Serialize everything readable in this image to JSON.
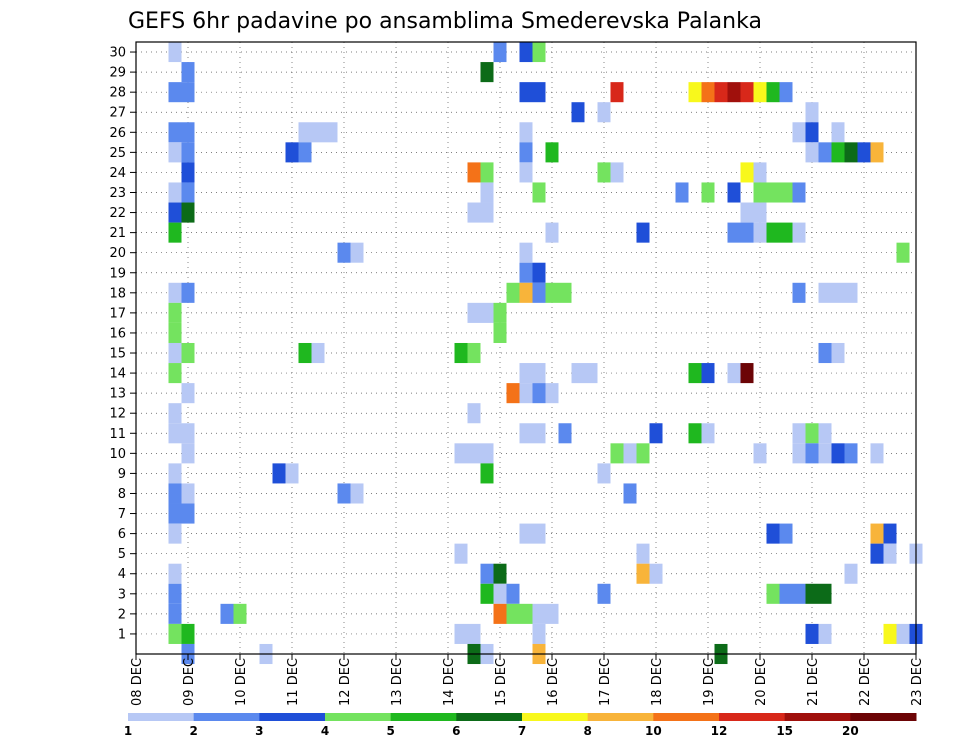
{
  "chart_data": {
    "type": "heatmap",
    "title": "GEFS 6hr padavine po ansamblima Smederevska Palanka",
    "xlabel": "",
    "ylabel": "",
    "x_tick_labels": [
      "08 DEC",
      "09 DEC",
      "10 DEC",
      "11 DEC",
      "12 DEC",
      "13 DEC",
      "14 DEC",
      "15 DEC",
      "16 DEC",
      "17 DEC",
      "18 DEC",
      "19 DEC",
      "20 DEC",
      "21 DEC",
      "22 DEC",
      "23 DEC"
    ],
    "x_unit": "6-hour steps from 08 DEC 00 UTC (4 per day)",
    "x_range": [
      0,
      60
    ],
    "y_tick_labels": [
      "1",
      "2",
      "3",
      "4",
      "5",
      "6",
      "7",
      "8",
      "9",
      "10",
      "11",
      "12",
      "13",
      "14",
      "15",
      "16",
      "17",
      "18",
      "19",
      "20",
      "21",
      "22",
      "23",
      "24",
      "25",
      "26",
      "27",
      "28",
      "29",
      "30"
    ],
    "y_range": [
      0,
      30
    ],
    "grid": true,
    "legend": {
      "placement": "bottom",
      "thresholds": [
        "1",
        "2",
        "3",
        "4",
        "5",
        "6",
        "7",
        "8",
        "10",
        "12",
        "15",
        "20"
      ],
      "colors": [
        "#b7c8f5",
        "#5b89ee",
        "#1f4fd8",
        "#74e35f",
        "#1fb81f",
        "#0c6b18",
        "#f8f81c",
        "#f8b43a",
        "#f47218",
        "#d8281a",
        "#a0100c",
        "#6c0406"
      ]
    },
    "cells_format": "[member, step, colour_class]",
    "cells": [
      [
        30,
        3,
        0
      ],
      [
        30,
        28,
        1
      ],
      [
        30,
        30,
        2
      ],
      [
        30,
        31,
        3
      ],
      [
        29,
        4,
        1
      ],
      [
        29,
        27,
        5
      ],
      [
        28,
        3,
        1
      ],
      [
        28,
        4,
        1
      ],
      [
        28,
        30,
        2
      ],
      [
        28,
        31,
        2
      ],
      [
        28,
        37,
        9
      ],
      [
        28,
        43,
        6
      ],
      [
        28,
        44,
        8
      ],
      [
        28,
        45,
        9
      ],
      [
        28,
        46,
        10
      ],
      [
        28,
        47,
        9
      ],
      [
        28,
        48,
        6
      ],
      [
        28,
        49,
        4
      ],
      [
        28,
        50,
        1
      ],
      [
        27,
        34,
        2
      ],
      [
        27,
        36,
        0
      ],
      [
        27,
        52,
        0
      ],
      [
        26,
        3,
        1
      ],
      [
        26,
        4,
        1
      ],
      [
        26,
        13,
        0
      ],
      [
        26,
        14,
        0
      ],
      [
        26,
        15,
        0
      ],
      [
        26,
        30,
        0
      ],
      [
        26,
        51,
        0
      ],
      [
        26,
        52,
        2
      ],
      [
        26,
        54,
        0
      ],
      [
        25,
        3,
        0
      ],
      [
        25,
        4,
        1
      ],
      [
        25,
        12,
        2
      ],
      [
        25,
        13,
        1
      ],
      [
        25,
        30,
        1
      ],
      [
        25,
        32,
        4
      ],
      [
        25,
        52,
        0
      ],
      [
        25,
        53,
        1
      ],
      [
        25,
        54,
        4
      ],
      [
        25,
        55,
        5
      ],
      [
        25,
        56,
        2
      ],
      [
        25,
        57,
        7
      ],
      [
        24,
        4,
        2
      ],
      [
        24,
        26,
        8
      ],
      [
        24,
        27,
        3
      ],
      [
        24,
        30,
        0
      ],
      [
        24,
        36,
        3
      ],
      [
        24,
        37,
        0
      ],
      [
        24,
        47,
        6
      ],
      [
        24,
        48,
        0
      ],
      [
        23,
        3,
        0
      ],
      [
        23,
        4,
        1
      ],
      [
        23,
        27,
        0
      ],
      [
        23,
        31,
        3
      ],
      [
        23,
        42,
        1
      ],
      [
        23,
        44,
        3
      ],
      [
        23,
        46,
        2
      ],
      [
        23,
        48,
        3
      ],
      [
        23,
        49,
        3
      ],
      [
        23,
        50,
        3
      ],
      [
        23,
        51,
        1
      ],
      [
        22,
        3,
        2
      ],
      [
        22,
        4,
        5
      ],
      [
        22,
        26,
        0
      ],
      [
        22,
        27,
        0
      ],
      [
        22,
        47,
        0
      ],
      [
        22,
        48,
        0
      ],
      [
        21,
        3,
        4
      ],
      [
        21,
        32,
        0
      ],
      [
        21,
        39,
        2
      ],
      [
        21,
        46,
        1
      ],
      [
        21,
        47,
        1
      ],
      [
        21,
        48,
        0
      ],
      [
        21,
        49,
        4
      ],
      [
        21,
        50,
        4
      ],
      [
        21,
        51,
        0
      ],
      [
        20,
        16,
        1
      ],
      [
        20,
        17,
        0
      ],
      [
        20,
        30,
        0
      ],
      [
        20,
        59,
        3
      ],
      [
        19,
        30,
        1
      ],
      [
        19,
        31,
        2
      ],
      [
        18,
        3,
        0
      ],
      [
        18,
        4,
        1
      ],
      [
        18,
        29,
        3
      ],
      [
        18,
        30,
        7
      ],
      [
        18,
        31,
        1
      ],
      [
        18,
        32,
        3
      ],
      [
        18,
        33,
        3
      ],
      [
        18,
        51,
        1
      ],
      [
        18,
        53,
        0
      ],
      [
        18,
        54,
        0
      ],
      [
        18,
        55,
        0
      ],
      [
        17,
        3,
        3
      ],
      [
        17,
        26,
        0
      ],
      [
        17,
        27,
        0
      ],
      [
        17,
        28,
        3
      ],
      [
        16,
        3,
        3
      ],
      [
        16,
        28,
        3
      ],
      [
        15,
        3,
        0
      ],
      [
        15,
        4,
        3
      ],
      [
        15,
        13,
        4
      ],
      [
        15,
        14,
        0
      ],
      [
        15,
        25,
        4
      ],
      [
        15,
        26,
        3
      ],
      [
        15,
        53,
        1
      ],
      [
        15,
        54,
        0
      ],
      [
        14,
        3,
        3
      ],
      [
        14,
        30,
        0
      ],
      [
        14,
        31,
        0
      ],
      [
        14,
        34,
        0
      ],
      [
        14,
        35,
        0
      ],
      [
        14,
        43,
        4
      ],
      [
        14,
        44,
        2
      ],
      [
        14,
        46,
        0
      ],
      [
        14,
        47,
        11
      ],
      [
        13,
        4,
        0
      ],
      [
        13,
        29,
        8
      ],
      [
        13,
        30,
        0
      ],
      [
        13,
        31,
        1
      ],
      [
        13,
        32,
        0
      ],
      [
        12,
        3,
        0
      ],
      [
        12,
        26,
        0
      ],
      [
        11,
        3,
        0
      ],
      [
        11,
        4,
        0
      ],
      [
        11,
        30,
        0
      ],
      [
        11,
        31,
        0
      ],
      [
        11,
        33,
        1
      ],
      [
        11,
        40,
        2
      ],
      [
        11,
        43,
        4
      ],
      [
        11,
        44,
        0
      ],
      [
        11,
        51,
        0
      ],
      [
        11,
        52,
        3
      ],
      [
        11,
        53,
        0
      ],
      [
        10,
        4,
        0
      ],
      [
        10,
        25,
        0
      ],
      [
        10,
        26,
        0
      ],
      [
        10,
        27,
        0
      ],
      [
        10,
        37,
        3
      ],
      [
        10,
        38,
        0
      ],
      [
        10,
        39,
        3
      ],
      [
        10,
        48,
        0
      ],
      [
        10,
        51,
        0
      ],
      [
        10,
        52,
        1
      ],
      [
        10,
        53,
        0
      ],
      [
        10,
        54,
        2
      ],
      [
        10,
        55,
        1
      ],
      [
        10,
        57,
        0
      ],
      [
        9,
        3,
        0
      ],
      [
        9,
        11,
        2
      ],
      [
        9,
        12,
        0
      ],
      [
        9,
        27,
        4
      ],
      [
        9,
        36,
        0
      ],
      [
        8,
        3,
        1
      ],
      [
        8,
        4,
        0
      ],
      [
        8,
        16,
        1
      ],
      [
        8,
        17,
        0
      ],
      [
        8,
        38,
        1
      ],
      [
        7,
        3,
        1
      ],
      [
        7,
        4,
        1
      ],
      [
        6,
        3,
        0
      ],
      [
        6,
        30,
        0
      ],
      [
        6,
        31,
        0
      ],
      [
        6,
        49,
        2
      ],
      [
        6,
        50,
        1
      ],
      [
        6,
        57,
        7
      ],
      [
        6,
        58,
        2
      ],
      [
        5,
        25,
        0
      ],
      [
        5,
        39,
        0
      ],
      [
        5,
        57,
        2
      ],
      [
        5,
        58,
        0
      ],
      [
        5,
        60,
        0
      ],
      [
        4,
        3,
        0
      ],
      [
        4,
        27,
        1
      ],
      [
        4,
        28,
        5
      ],
      [
        4,
        39,
        7
      ],
      [
        4,
        40,
        0
      ],
      [
        4,
        55,
        0
      ],
      [
        3,
        3,
        1
      ],
      [
        3,
        27,
        4
      ],
      [
        3,
        28,
        0
      ],
      [
        3,
        29,
        1
      ],
      [
        3,
        36,
        1
      ],
      [
        3,
        49,
        3
      ],
      [
        3,
        50,
        1
      ],
      [
        3,
        51,
        1
      ],
      [
        3,
        52,
        5
      ],
      [
        3,
        53,
        5
      ],
      [
        2,
        3,
        1
      ],
      [
        2,
        7,
        1
      ],
      [
        2,
        8,
        3
      ],
      [
        2,
        28,
        8
      ],
      [
        2,
        29,
        3
      ],
      [
        2,
        30,
        3
      ],
      [
        2,
        31,
        0
      ],
      [
        2,
        32,
        0
      ],
      [
        1,
        3,
        3
      ],
      [
        1,
        4,
        4
      ],
      [
        1,
        25,
        0
      ],
      [
        1,
        26,
        0
      ],
      [
        1,
        31,
        0
      ],
      [
        1,
        52,
        2
      ],
      [
        1,
        53,
        0
      ],
      [
        1,
        58,
        6
      ],
      [
        1,
        59,
        0
      ],
      [
        1,
        60,
        2
      ],
      [
        0,
        4,
        1
      ],
      [
        0,
        10,
        0
      ],
      [
        0,
        26,
        5
      ],
      [
        0,
        27,
        0
      ],
      [
        0,
        31,
        7
      ],
      [
        0,
        45,
        5
      ]
    ]
  }
}
